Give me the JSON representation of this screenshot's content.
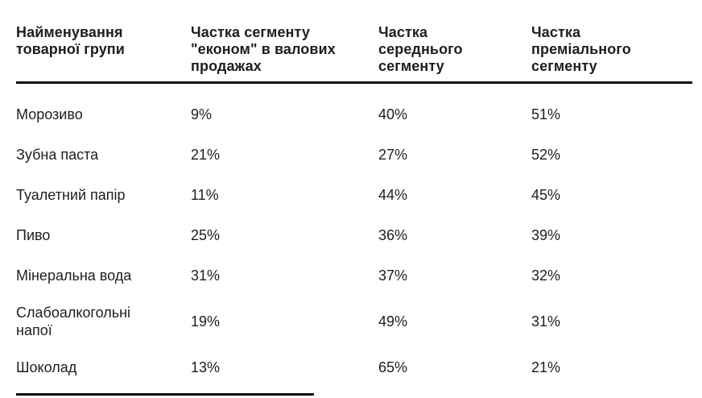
{
  "table": {
    "headers": {
      "product_group": "Найменування\nтоварної групи",
      "econom_share": "Частка сегменту\n\"економ\" в валових\nпродажах",
      "middle_share": "Частка\nсереднього\nсегменту",
      "premium_share": "Частка\nпреміального\nсегменту"
    },
    "rows": [
      {
        "name": "Морозиво",
        "econom": "9%",
        "middle": "40%",
        "premium": "51%"
      },
      {
        "name": "Зубна паста",
        "econom": "21%",
        "middle": "27%",
        "premium": "52%"
      },
      {
        "name": "Туалетний папір",
        "econom": "11%",
        "middle": "44%",
        "premium": "45%"
      },
      {
        "name": "Пиво",
        "econom": "25%",
        "middle": "36%",
        "premium": "39%"
      },
      {
        "name": "Мінеральна вода",
        "econom": "31%",
        "middle": "37%",
        "premium": "32%"
      },
      {
        "name": "Слабоалкогольні\nнапої",
        "econom": "19%",
        "middle": "49%",
        "premium": "31%"
      },
      {
        "name": "Шоколад",
        "econom": "13%",
        "middle": "65%",
        "premium": "21%"
      }
    ]
  },
  "colors": {
    "background": "#ffffff",
    "text": "#1e1e1e",
    "rule": "#111111"
  }
}
